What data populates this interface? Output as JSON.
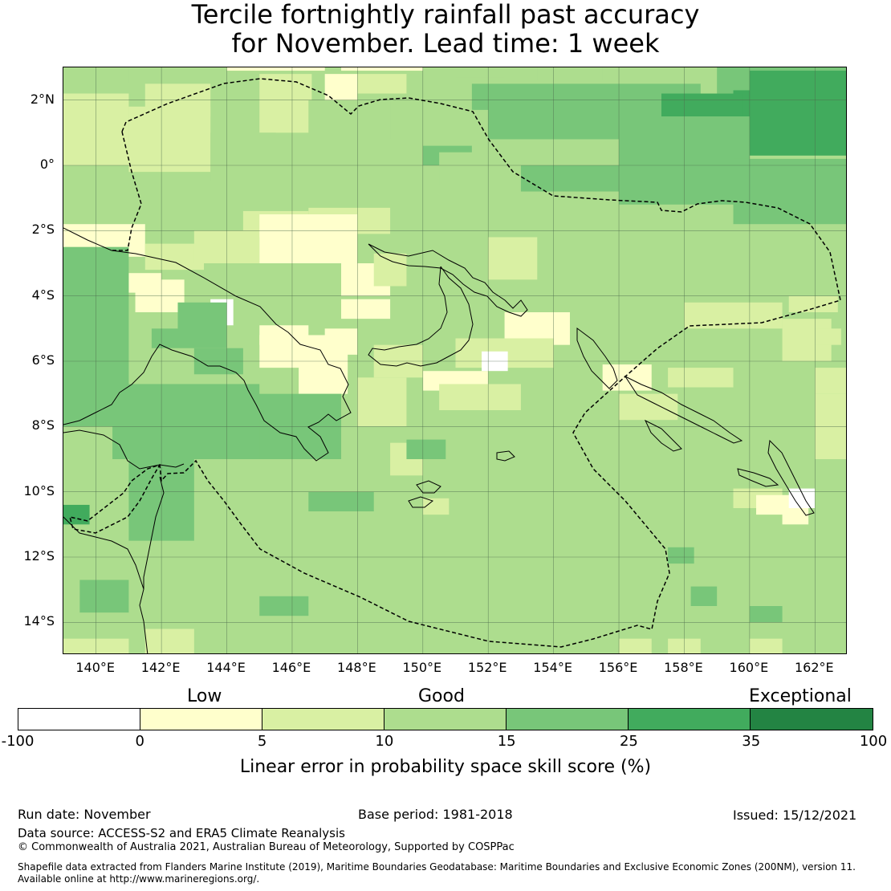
{
  "title_line1": "Tercile fortnightly rainfall past accuracy",
  "title_line2": "for November. Lead time: 1 week",
  "map": {
    "lon_range": [
      139,
      163
    ],
    "lat_range": [
      -15,
      3
    ],
    "lon_ticks": [
      "140°E",
      "142°E",
      "144°E",
      "146°E",
      "148°E",
      "150°E",
      "152°E",
      "154°E",
      "156°E",
      "158°E",
      "160°E",
      "162°E"
    ],
    "lat_ticks": [
      "2°N",
      "0°",
      "2°S",
      "4°S",
      "6°S",
      "8°S",
      "10°S",
      "12°S",
      "14°S"
    ],
    "grid_step_deg": 0.8,
    "dominant_band": 3,
    "patches": [
      [
        139.0,
        2.0,
        2.0,
        1,
        3
      ],
      [
        141.0,
        2.5,
        1.0,
        0.5,
        3
      ],
      [
        144.0,
        2.9,
        3.0,
        0.5,
        1
      ],
      [
        147.5,
        2.9,
        2.5,
        0.5,
        1
      ],
      [
        145.0,
        2.0,
        1.6,
        0.8,
        2
      ],
      [
        147.0,
        2.0,
        1.0,
        0.8,
        1
      ],
      [
        148.0,
        2.2,
        1.5,
        0.6,
        2
      ],
      [
        151.0,
        2.7,
        1.5,
        0.5,
        3
      ],
      [
        153.5,
        2.6,
        1.5,
        0.6,
        3
      ],
      [
        155.5,
        2.6,
        2.0,
        0.4,
        3
      ],
      [
        158.0,
        2.5,
        4.0,
        0.4,
        3
      ],
      [
        141.5,
        1.5,
        2.0,
        1.0,
        2
      ],
      [
        145.0,
        1.0,
        1.5,
        1.0,
        2
      ],
      [
        147.5,
        0.8,
        1.5,
        1.2,
        3
      ],
      [
        151.5,
        1.7,
        7.0,
        0.8,
        4
      ],
      [
        159.0,
        2.2,
        1.0,
        1.5,
        4
      ],
      [
        160.0,
        2.0,
        3.0,
        1.0,
        4
      ],
      [
        159.5,
        1.5,
        0.8,
        0.8,
        5
      ],
      [
        152.0,
        0.8,
        6.0,
        1.3,
        4
      ],
      [
        157.5,
        0.6,
        3.5,
        0.8,
        4
      ],
      [
        160.0,
        1.0,
        3.0,
        0.7,
        5
      ],
      [
        150.0,
        0.0,
        1.5,
        0.6,
        4
      ],
      [
        156.5,
        0.0,
        1.0,
        1.2,
        5
      ],
      [
        157.3,
        0.5,
        2.5,
        1.7,
        5
      ],
      [
        160.0,
        0.3,
        3.0,
        2.6,
        5
      ],
      [
        150.5,
        -0.6,
        2.5,
        1.0,
        3
      ],
      [
        153.0,
        -0.8,
        3.0,
        0.8,
        4
      ],
      [
        156.0,
        -1.2,
        4.0,
        2.7,
        4
      ],
      [
        159.5,
        -1.8,
        3.5,
        2.0,
        4
      ],
      [
        139.0,
        0.0,
        2.0,
        2.2,
        2
      ],
      [
        141.0,
        -0.2,
        2.5,
        2.0,
        2
      ],
      [
        143.5,
        -0.5,
        2.0,
        1.5,
        3
      ],
      [
        144.5,
        -2.2,
        2.0,
        0.8,
        2
      ],
      [
        146.5,
        -2.1,
        2.5,
        0.8,
        2
      ],
      [
        139.0,
        -2.8,
        2.5,
        1.0,
        1
      ],
      [
        141.5,
        -3.2,
        1.8,
        0.8,
        2
      ],
      [
        139.0,
        -3.5,
        1.0,
        0.8,
        0
      ],
      [
        140.0,
        -4.1,
        0.8,
        0.6,
        0
      ],
      [
        139.5,
        -3.9,
        2.5,
        0.6,
        1
      ],
      [
        141.2,
        -4.5,
        1.5,
        1.0,
        1
      ],
      [
        143.0,
        -3.0,
        2.0,
        1.0,
        2
      ],
      [
        145.0,
        -3.0,
        3.0,
        1.5,
        1
      ],
      [
        147.5,
        -4.0,
        1.5,
        1.0,
        1
      ],
      [
        148.5,
        -3.7,
        1.0,
        1.0,
        2
      ],
      [
        143.5,
        -4.9,
        0.7,
        0.8,
        0
      ],
      [
        141.7,
        -5.6,
        0.8,
        0.6,
        4
      ],
      [
        142.5,
        -5.6,
        1.5,
        1.4,
        4
      ],
      [
        143.0,
        -6.4,
        1.5,
        0.8,
        4
      ],
      [
        145.0,
        -5.5,
        1.5,
        0.6,
        1
      ],
      [
        145.0,
        -6.2,
        2.5,
        1.0,
        1
      ],
      [
        146.2,
        -7.0,
        1.5,
        1.5,
        1
      ],
      [
        147.0,
        -5.8,
        1.0,
        0.8,
        1
      ],
      [
        147.5,
        -4.7,
        1.5,
        0.6,
        1
      ],
      [
        152.0,
        -3.5,
        1.5,
        1.3,
        2
      ],
      [
        152.5,
        -5.5,
        2.0,
        1.0,
        1
      ],
      [
        151.0,
        -6.2,
        3.0,
        0.9,
        2
      ],
      [
        150.0,
        -6.9,
        2.0,
        0.6,
        1
      ],
      [
        150.5,
        -7.5,
        2.5,
        0.8,
        2
      ],
      [
        151.8,
        -6.3,
        0.8,
        0.6,
        0
      ],
      [
        148.5,
        -6.5,
        1.5,
        1.0,
        2
      ],
      [
        148.0,
        -8.0,
        1.5,
        1.5,
        2
      ],
      [
        149.0,
        -9.5,
        1.0,
        1.0,
        2
      ],
      [
        150.0,
        -10.7,
        0.8,
        0.5,
        2
      ],
      [
        149.5,
        -9.0,
        1.2,
        0.6,
        4
      ],
      [
        146.5,
        -10.6,
        2.0,
        0.6,
        4
      ],
      [
        144.5,
        -9.0,
        3.0,
        2.0,
        4
      ],
      [
        140.5,
        -9.0,
        4.5,
        2.3,
        4
      ],
      [
        139.0,
        -8.0,
        2.0,
        5.5,
        4
      ],
      [
        139.0,
        -11.0,
        0.8,
        0.6,
        5
      ],
      [
        141.0,
        -11.5,
        2.0,
        2.5,
        4
      ],
      [
        139.5,
        -13.7,
        1.5,
        1.0,
        4
      ],
      [
        145.0,
        -13.8,
        1.5,
        0.6,
        4
      ],
      [
        157.5,
        -12.2,
        0.8,
        0.5,
        4
      ],
      [
        158.2,
        -13.5,
        0.8,
        0.6,
        4
      ],
      [
        160.0,
        -14.0,
        1.0,
        0.5,
        4
      ],
      [
        139.0,
        -15.0,
        2.0,
        0.5,
        2
      ],
      [
        141.5,
        -15.0,
        1.5,
        0.8,
        2
      ],
      [
        156.0,
        -15.0,
        1.0,
        0.5,
        2
      ],
      [
        157.5,
        -15.0,
        1.0,
        0.5,
        2
      ],
      [
        160.0,
        -15.0,
        1.0,
        0.5,
        2
      ],
      [
        155.5,
        -6.9,
        1.5,
        0.8,
        1
      ],
      [
        157.5,
        -6.8,
        2.0,
        0.6,
        2
      ],
      [
        156.0,
        -7.8,
        1.8,
        0.8,
        2
      ],
      [
        161.0,
        -6.0,
        1.5,
        1.3,
        2
      ],
      [
        162.0,
        -7.0,
        1.0,
        0.8,
        2
      ],
      [
        162.0,
        -9.0,
        1.0,
        2.0,
        2
      ],
      [
        159.5,
        -10.5,
        1.5,
        0.6,
        2
      ],
      [
        160.2,
        -10.7,
        1.5,
        0.6,
        1
      ],
      [
        161.0,
        -11.0,
        0.8,
        0.5,
        1
      ],
      [
        161.2,
        -10.5,
        0.8,
        0.6,
        0
      ],
      [
        162.0,
        -5.5,
        0.8,
        0.5,
        2
      ],
      [
        161.2,
        -4.5,
        1.5,
        0.5,
        2
      ],
      [
        158.0,
        -5.0,
        3.0,
        0.8,
        2
      ]
    ]
  },
  "colorbar": {
    "category_labels": {
      "low": "Low",
      "good": "Good",
      "exceptional": "Exceptional"
    },
    "ticks": [
      "-100",
      "0",
      "5",
      "10",
      "15",
      "25",
      "35",
      "100"
    ],
    "colors": [
      "#ffffff",
      "#ffffcc",
      "#d9f0a3",
      "#addd8e",
      "#78c679",
      "#41ab5d",
      "#238443"
    ],
    "label": "Linear error in probability space skill score (%)"
  },
  "footer": {
    "run_date": "Run date: November",
    "base_period": "Base period: 1981-2018",
    "issued": "Issued: 15/12/2021",
    "data_source": "Data source: ACCESS-S2 and ERA5 Climate Reanalysis",
    "copyright": "© Commonwealth of Australia 2021, Australian Bureau of Meteorology, Supported by COSPPac",
    "shapefile_line1": "Shapefile data extracted from Flanders Marine Institute (2019), Maritime Boundaries Geodatabase: Maritime Boundaries and Exclusive Economic Zones (200NM), version 11.",
    "shapefile_line2": "Available online at http://www.marineregions.org/."
  }
}
